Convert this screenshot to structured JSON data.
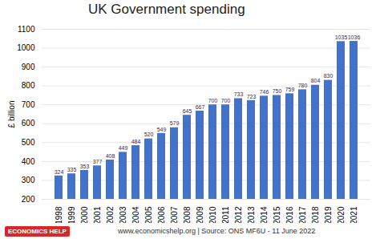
{
  "chart_data": {
    "type": "bar",
    "title": "UK Government spending",
    "y_label": "£ billion",
    "caption": "www.economicshelp.org | Source: ONS MF6U - 11 June 2022",
    "logo": "ECONOMICS HELP",
    "categories": [
      "1998",
      "1999",
      "2000",
      "2001",
      "2002",
      "2003",
      "2004",
      "2005",
      "2006",
      "2007",
      "2008",
      "2009",
      "2010",
      "2011",
      "2012",
      "2013",
      "2014",
      "2015",
      "2016",
      "2017",
      "2018",
      "2019",
      "2020",
      "2021"
    ],
    "values": [
      324,
      335,
      353,
      377,
      408,
      449,
      484,
      520,
      549,
      579,
      645,
      667,
      700,
      700,
      733,
      723,
      746,
      750,
      759,
      780,
      804,
      830,
      1035,
      1036
    ],
    "color": "#4472c4",
    "ylim": [
      200,
      1100
    ],
    "yticks": [
      200,
      300,
      400,
      500,
      600,
      700,
      800,
      900,
      1000,
      1100
    ],
    "grid": true,
    "data_labels": true
  }
}
